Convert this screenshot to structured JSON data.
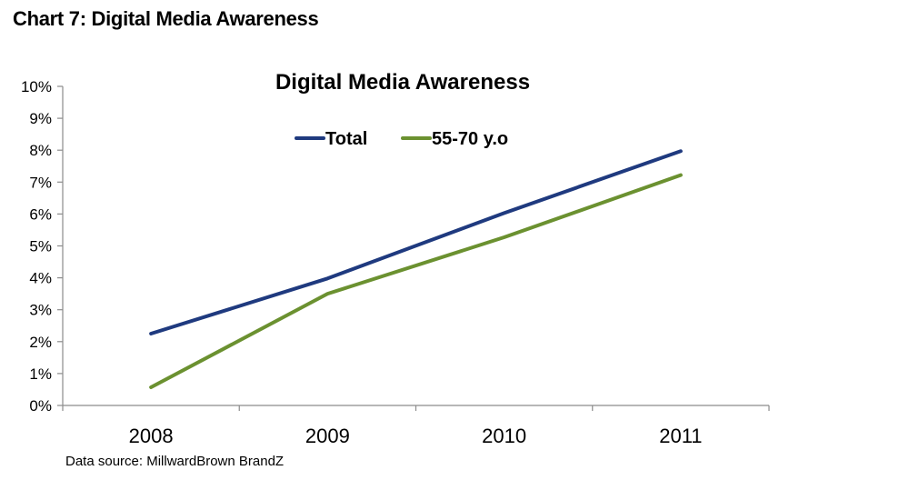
{
  "heading": "Chart 7:  Digital Media Awareness",
  "source": "Data source:  MillwardBrown  BrandZ",
  "chart_data": {
    "type": "line",
    "title": "Digital Media Awareness",
    "x": [
      "2008",
      "2009",
      "2010",
      "2011"
    ],
    "series": [
      {
        "name": "Total",
        "color": "#1f3a7f",
        "values": [
          2.25,
          3.98,
          6.03,
          7.97
        ]
      },
      {
        "name": "55-70 y.o",
        "color": "#6b9130",
        "values": [
          0.57,
          3.5,
          5.27,
          7.22
        ]
      }
    ],
    "y_ticks": [
      "0%",
      "1%",
      "2%",
      "3%",
      "4%",
      "5%",
      "6%",
      "7%",
      "8%",
      "9%",
      "10%"
    ],
    "ylim": [
      0,
      10
    ],
    "y_unit": "%",
    "grid": false,
    "legend_position": "top"
  }
}
